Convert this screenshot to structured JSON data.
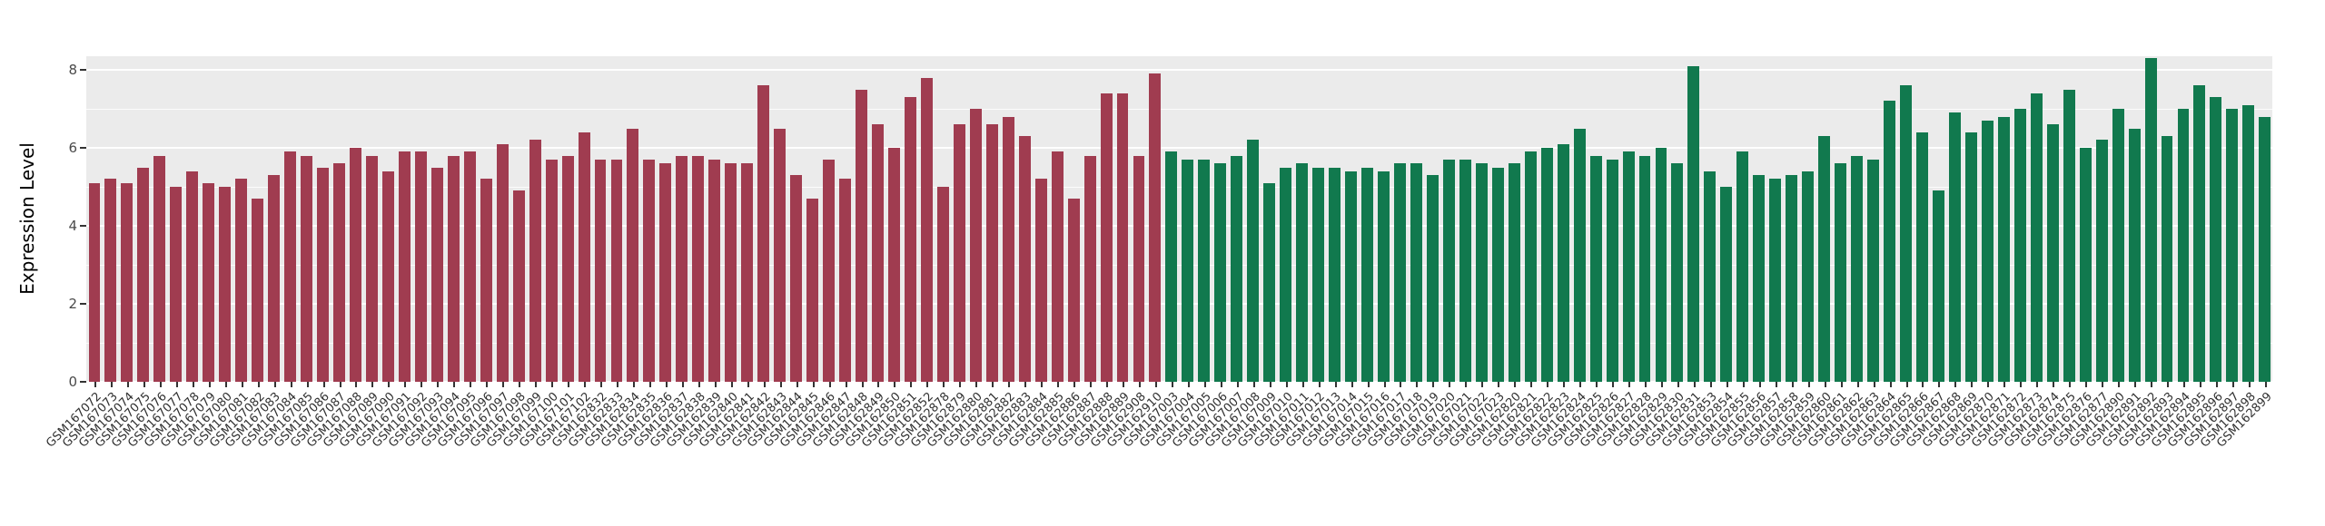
{
  "chart_data": {
    "type": "bar",
    "title": "",
    "xlabel": "",
    "ylabel": "Expression Level",
    "ylim": [
      0,
      8.35
    ],
    "yticks": [
      0,
      2,
      4,
      6,
      8
    ],
    "yticks_minor": [
      1,
      3,
      5,
      7
    ],
    "grid": true,
    "legend": "none",
    "panel_background": "#EBEBEB",
    "gridline_color": "#FFFFFF",
    "group_split_index": 66,
    "groups": [
      {
        "name": "left-group-red",
        "color": "#A03C50",
        "count": 66
      },
      {
        "name": "right-group-green",
        "color": "#11794E",
        "count": 68
      }
    ],
    "categories": [
      "GSM167072",
      "GSM167073",
      "GSM167074",
      "GSM167075",
      "GSM167076",
      "GSM167077",
      "GSM167078",
      "GSM167079",
      "GSM167080",
      "GSM167081",
      "GSM167082",
      "GSM167083",
      "GSM167084",
      "GSM167085",
      "GSM167086",
      "GSM167087",
      "GSM167088",
      "GSM167089",
      "GSM167090",
      "GSM167091",
      "GSM167092",
      "GSM167093",
      "GSM167094",
      "GSM167095",
      "GSM167096",
      "GSM167097",
      "GSM167098",
      "GSM167099",
      "GSM167100",
      "GSM167101",
      "GSM167102",
      "GSM162832",
      "GSM162833",
      "GSM162834",
      "GSM162835",
      "GSM162836",
      "GSM162837",
      "GSM162838",
      "GSM162839",
      "GSM162840",
      "GSM162841",
      "GSM162842",
      "GSM162843",
      "GSM162844",
      "GSM162845",
      "GSM162846",
      "GSM162847",
      "GSM162848",
      "GSM162849",
      "GSM162850",
      "GSM162851",
      "GSM162852",
      "GSM162878",
      "GSM162879",
      "GSM162880",
      "GSM162881",
      "GSM162882",
      "GSM162883",
      "GSM162884",
      "GSM162885",
      "GSM162886",
      "GSM162887",
      "GSM162888",
      "GSM162889",
      "GSM162908",
      "GSM162910",
      "GSM167003",
      "GSM167004",
      "GSM167005",
      "GSM167006",
      "GSM167007",
      "GSM167008",
      "GSM167009",
      "GSM167010",
      "GSM167011",
      "GSM167012",
      "GSM167013",
      "GSM167014",
      "GSM167015",
      "GSM167016",
      "GSM167017",
      "GSM167018",
      "GSM167019",
      "GSM167020",
      "GSM167021",
      "GSM167022",
      "GSM167023",
      "GSM162820",
      "GSM162821",
      "GSM162822",
      "GSM162823",
      "GSM162824",
      "GSM162825",
      "GSM162826",
      "GSM162827",
      "GSM162828",
      "GSM162829",
      "GSM162830",
      "GSM162831",
      "GSM162853",
      "GSM162854",
      "GSM162855",
      "GSM162856",
      "GSM162857",
      "GSM162858",
      "GSM162859",
      "GSM162860",
      "GSM162861",
      "GSM162862",
      "GSM162863",
      "GSM162864",
      "GSM162865",
      "GSM162866",
      "GSM162867",
      "GSM162868",
      "GSM162869",
      "GSM162870",
      "GSM162871",
      "GSM162872",
      "GSM162873",
      "GSM162874",
      "GSM162875",
      "GSM162876",
      "GSM162877",
      "GSM162890",
      "GSM162891",
      "GSM162892",
      "GSM162893",
      "GSM162894",
      "GSM162895",
      "GSM162896",
      "GSM162897",
      "GSM162898",
      "GSM162899"
    ],
    "values": [
      5.1,
      5.2,
      5.1,
      5.5,
      5.8,
      5.0,
      5.4,
      5.1,
      5.0,
      5.2,
      4.7,
      5.3,
      5.9,
      5.8,
      5.5,
      5.6,
      6.0,
      5.8,
      5.4,
      5.9,
      5.9,
      5.5,
      5.8,
      5.9,
      5.2,
      6.1,
      4.9,
      6.2,
      5.7,
      5.8,
      6.4,
      5.7,
      5.7,
      6.5,
      5.7,
      5.6,
      5.8,
      5.8,
      5.7,
      5.6,
      5.6,
      7.6,
      6.5,
      5.3,
      4.7,
      5.7,
      5.2,
      7.5,
      6.6,
      6.0,
      7.3,
      7.8,
      5.0,
      6.6,
      7.0,
      6.6,
      6.8,
      6.3,
      5.2,
      5.9,
      4.7,
      5.8,
      7.4,
      7.4,
      5.8,
      7.9,
      5.9,
      5.7,
      5.7,
      5.6,
      5.8,
      6.2,
      5.1,
      5.5,
      5.6,
      5.5,
      5.5,
      5.4,
      5.5,
      5.4,
      5.6,
      5.6,
      5.3,
      5.7,
      5.7,
      5.6,
      5.5,
      5.6,
      5.9,
      6.0,
      6.1,
      6.5,
      5.8,
      5.7,
      5.9,
      5.8,
      6.0,
      5.6,
      8.1,
      5.4,
      5.0,
      5.9,
      5.3,
      5.2,
      5.3,
      5.4,
      6.3,
      5.6,
      5.8,
      5.7,
      7.2,
      7.6,
      6.4,
      4.9,
      6.9,
      6.4,
      6.7,
      6.8,
      7.0,
      7.4,
      6.6,
      7.5,
      6.0,
      6.2,
      7.0,
      6.5,
      8.3,
      6.3,
      7.0,
      7.6,
      7.3,
      7.0,
      7.1,
      6.8
    ]
  }
}
